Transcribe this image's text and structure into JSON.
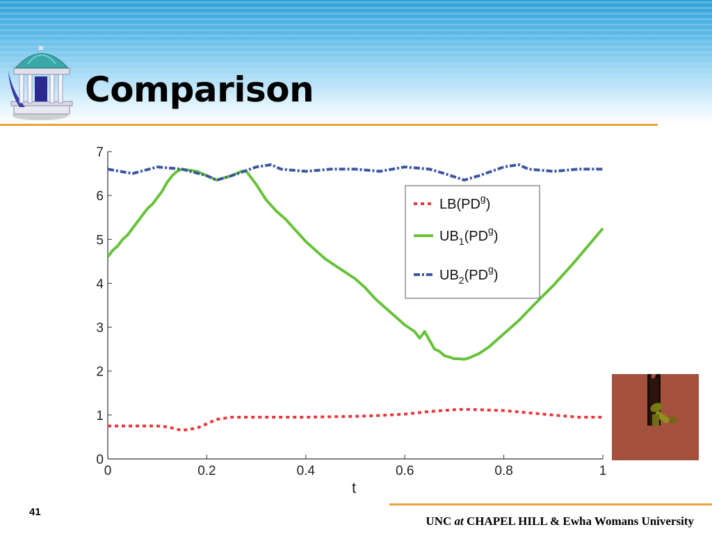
{
  "slide": {
    "title": "Comparison",
    "page_number": "41",
    "footer": {
      "part1": "UNC ",
      "part2": "at",
      "part3": " CHAPEL HILL & Ewha Womans University"
    }
  },
  "colors": {
    "header_blue": "#2ea0d8",
    "rule_orange": "#e8a33c",
    "lb_red": "#e8383d",
    "ub1_green": "#67c23a",
    "ub2_blue": "#3a55a4",
    "thumb_brown": "#a3503c"
  },
  "icons": [
    "old-well-logo-icon",
    "robot-in-slot-thumbnail"
  ],
  "chart_data": {
    "type": "line",
    "title": "",
    "xlabel": "t",
    "ylabel": "",
    "xlim": [
      0,
      1
    ],
    "ylim": [
      0,
      7
    ],
    "xticks": [
      "0",
      "0.2",
      "0.4",
      "0.6",
      "0.8",
      "1"
    ],
    "yticks": [
      "0",
      "1",
      "2",
      "3",
      "4",
      "5",
      "6",
      "7"
    ],
    "grid": false,
    "legend_position": "upper-right",
    "series": [
      {
        "name": "LB(PD^g)",
        "label_main": "LB(PD",
        "label_sub": "",
        "label_sup": "g",
        "style": "dotted",
        "color": "#e8383d",
        "x": [
          0,
          0.05,
          0.1,
          0.12,
          0.15,
          0.18,
          0.2,
          0.22,
          0.25,
          0.3,
          0.4,
          0.5,
          0.55,
          0.6,
          0.65,
          0.7,
          0.72,
          0.75,
          0.8,
          0.85,
          0.9,
          0.95,
          1.0
        ],
        "y": [
          0.75,
          0.75,
          0.75,
          0.73,
          0.65,
          0.7,
          0.8,
          0.9,
          0.95,
          0.95,
          0.95,
          0.97,
          0.99,
          1.02,
          1.08,
          1.12,
          1.13,
          1.12,
          1.1,
          1.05,
          1.0,
          0.95,
          0.95
        ]
      },
      {
        "name": "UB1(PD^g)",
        "label_main": "UB",
        "label_sub": "1",
        "label_sup": "g",
        "style": "solid",
        "color": "#67c23a",
        "x": [
          0,
          0.01,
          0.02,
          0.03,
          0.04,
          0.05,
          0.06,
          0.07,
          0.08,
          0.09,
          0.1,
          0.11,
          0.12,
          0.13,
          0.14,
          0.15,
          0.18,
          0.2,
          0.22,
          0.25,
          0.27,
          0.28,
          0.3,
          0.32,
          0.34,
          0.36,
          0.38,
          0.4,
          0.42,
          0.44,
          0.46,
          0.48,
          0.5,
          0.52,
          0.54,
          0.56,
          0.58,
          0.6,
          0.62,
          0.63,
          0.64,
          0.65,
          0.66,
          0.67,
          0.68,
          0.69,
          0.7,
          0.71,
          0.72,
          0.73,
          0.74,
          0.75,
          0.77,
          0.8,
          0.83,
          0.86,
          0.9,
          0.94,
          0.97,
          1.0
        ],
        "y": [
          4.6,
          4.75,
          4.85,
          5.0,
          5.1,
          5.25,
          5.4,
          5.55,
          5.7,
          5.8,
          5.95,
          6.1,
          6.3,
          6.45,
          6.55,
          6.6,
          6.55,
          6.45,
          6.35,
          6.45,
          6.55,
          6.55,
          6.25,
          5.9,
          5.65,
          5.45,
          5.2,
          4.95,
          4.75,
          4.55,
          4.4,
          4.25,
          4.1,
          3.9,
          3.65,
          3.45,
          3.25,
          3.05,
          2.9,
          2.75,
          2.9,
          2.7,
          2.5,
          2.45,
          2.35,
          2.32,
          2.28,
          2.28,
          2.27,
          2.3,
          2.35,
          2.4,
          2.55,
          2.85,
          3.15,
          3.5,
          3.95,
          4.45,
          4.85,
          5.25
        ]
      },
      {
        "name": "UB2(PD^g)",
        "label_main": "UB",
        "label_sub": "2",
        "label_sup": "g",
        "style": "dashdot",
        "color": "#3a55a4",
        "x": [
          0,
          0.05,
          0.1,
          0.15,
          0.2,
          0.22,
          0.25,
          0.3,
          0.33,
          0.35,
          0.4,
          0.45,
          0.5,
          0.55,
          0.6,
          0.65,
          0.68,
          0.72,
          0.75,
          0.8,
          0.83,
          0.85,
          0.9,
          0.95,
          1.0
        ],
        "y": [
          6.6,
          6.5,
          6.65,
          6.6,
          6.45,
          6.35,
          6.45,
          6.65,
          6.7,
          6.6,
          6.55,
          6.6,
          6.6,
          6.55,
          6.65,
          6.6,
          6.5,
          6.35,
          6.45,
          6.65,
          6.7,
          6.6,
          6.55,
          6.6,
          6.6
        ]
      }
    ]
  }
}
